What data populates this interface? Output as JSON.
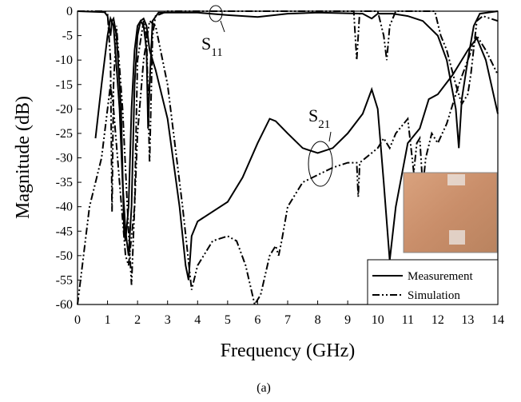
{
  "chart_data": {
    "type": "line",
    "xlabel": "Frequency (GHz)",
    "ylabel": "Magnitude (dB)",
    "caption": "(a)",
    "xlim": [
      0,
      14
    ],
    "xticks": [
      0,
      1,
      2,
      3,
      4,
      5,
      6,
      7,
      8,
      9,
      10,
      11,
      12,
      13,
      14
    ],
    "ylim": [
      -60,
      0
    ],
    "yticks": [
      0,
      -5,
      -10,
      -15,
      -20,
      -25,
      -30,
      -35,
      -40,
      -45,
      -50,
      -55,
      -60
    ],
    "annotations": [
      {
        "text": "S",
        "subscript": "11"
      },
      {
        "text": "S",
        "subscript": "21"
      }
    ],
    "legend_position": "lower right",
    "series": [
      {
        "name": "Measurement",
        "color": "#000000",
        "dash": "solid",
        "curves": [
          {
            "x": [
              0,
              0.9,
              1.0,
              1.1,
              1.15,
              1.2,
              1.3,
              1.45,
              1.55,
              1.6,
              1.7,
              1.8,
              1.9,
              2.0,
              2.1,
              2.2,
              2.3,
              2.35,
              2.4,
              2.5,
              2.7,
              4,
              5,
              6,
              7,
              8,
              9.5,
              9.8,
              10,
              10.5,
              11,
              11.5,
              12,
              12.3,
              12.6,
              12.7,
              12.8,
              13,
              13.2,
              13.4,
              14
            ],
            "values": [
              0,
              -0.2,
              -1,
              -5,
              -2,
              -1.5,
              -5,
              -20,
              -45,
              -47,
              -40,
              -20,
              -8,
              -3,
              -2,
              -3,
              -8,
              -24,
              -15,
              -2,
              -0.3,
              -0.3,
              -0.8,
              -1.2,
              -0.5,
              -0.3,
              -0.5,
              -1.5,
              -0.5,
              -0.5,
              -1,
              -2,
              -5,
              -10,
              -20,
              -28,
              -18,
              -10,
              -3,
              -0.5,
              0
            ]
          },
          {
            "x": [
              0.6,
              0.8,
              1.0,
              1.1,
              1.2,
              1.4,
              1.5,
              1.6,
              1.7,
              1.8,
              1.9,
              2.0,
              2.1,
              2.2,
              2.3,
              2.4,
              2.6,
              3.0,
              3.4,
              3.6,
              3.7,
              3.8,
              4,
              5,
              5.5,
              6,
              6.4,
              6.6,
              7,
              7.5,
              8,
              8.5,
              9,
              9.5,
              9.8,
              10,
              10.2,
              10.4,
              10.6,
              11,
              11.4,
              11.7,
              12,
              12.5,
              13,
              13.3,
              13.6,
              14
            ],
            "values": [
              -26,
              -15,
              -5,
              -1.5,
              -3,
              -20,
              -35,
              -45,
              -50,
              -40,
              -15,
              -5,
              -2,
              -1.5,
              -3,
              -8,
              -12,
              -22,
              -40,
              -52,
              -55,
              -46,
              -43,
              -39,
              -34,
              -27,
              -22,
              -22.5,
              -25,
              -28,
              -29,
              -28,
              -25,
              -21,
              -16,
              -20,
              -35,
              -51,
              -40,
              -27,
              -24,
              -18,
              -17,
              -13,
              -8,
              -5.5,
              -10,
              -21
            ]
          }
        ]
      },
      {
        "name": "Simulation",
        "color": "#000000",
        "dash": "dashdot",
        "curves": [
          {
            "x": [
              0,
              0.9,
              1.0,
              1.1,
              1.15,
              1.2,
              1.3,
              1.5,
              1.7,
              1.8,
              1.9,
              2.0,
              2.2,
              2.3,
              2.4,
              2.5,
              2.6,
              3,
              9.2,
              9.3,
              9.4,
              10,
              10.2,
              10.3,
              10.4,
              10.6,
              11.9,
              12.1,
              12.3,
              12.6,
              12.8,
              13,
              13.1,
              13.3,
              13.5,
              14
            ],
            "values": [
              0,
              0,
              -0.5,
              -10,
              -41,
              -15,
              -3,
              -20,
              -45,
              -56,
              -40,
              -10,
              -2,
              -5,
              -31,
              -5,
              -1,
              0,
              0,
              -10,
              0,
              0,
              -5,
              -10,
              -3,
              0,
              0,
              -5,
              -8,
              -15,
              -19,
              -17,
              -13,
              -2,
              -1,
              -2
            ]
          },
          {
            "x": [
              0,
              0.1,
              0.4,
              0.8,
              1.1,
              1.2,
              1.4,
              1.6,
              1.7,
              1.9,
              2.0,
              2.2,
              2.4,
              2.6,
              3.0,
              3.5,
              3.8,
              4.0,
              4.5,
              5,
              5.3,
              5.6,
              5.9,
              6.1,
              6.4,
              6.6,
              6.7,
              6.8,
              7,
              7.5,
              8,
              8.5,
              9,
              9.3,
              9.35,
              9.4,
              10,
              10.2,
              10.4,
              10.6,
              11,
              11.2,
              11.3,
              11.4,
              11.5,
              11.6,
              11.8,
              12,
              12.3,
              12.7,
              13,
              13.3,
              13.6,
              14
            ],
            "values": [
              -60,
              -55,
              -40,
              -30,
              -15,
              -20,
              -35,
              -50,
              -52,
              -40,
              -25,
              -10,
              -2,
              -3,
              -15,
              -40,
              -57,
              -52,
              -47,
              -46,
              -47,
              -52,
              -60,
              -58,
              -50,
              -48,
              -50,
              -47,
              -40,
              -35,
              -33.5,
              -32,
              -31,
              -31,
              -38,
              -31,
              -28,
              -26,
              -28,
              -25,
              -22,
              -33,
              -27,
              -26,
              -36,
              -30,
              -25,
              -27,
              -23,
              -15,
              -10,
              -5,
              -8,
              -13
            ]
          }
        ]
      }
    ]
  }
}
